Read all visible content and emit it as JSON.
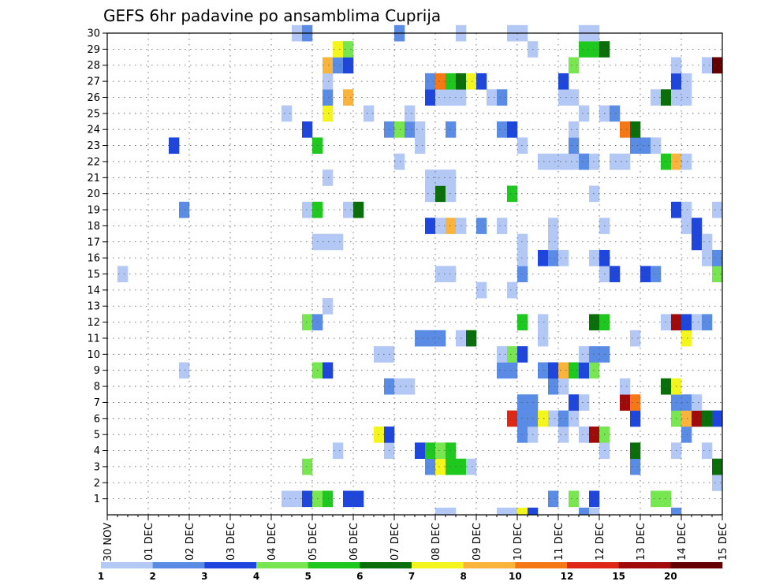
{
  "chart_data": {
    "type": "heatmap",
    "title": "GEFS 6hr padavine po ansamblima Cuprija",
    "xlabel": "",
    "ylabel": "",
    "x_tick_labels": [
      "30 NOV",
      "01 DEC",
      "02 DEC",
      "03 DEC",
      "04 DEC",
      "05 DEC",
      "06 DEC",
      "07 DEC",
      "08 DEC",
      "09 DEC",
      "10 DEC",
      "11 DEC",
      "12 DEC",
      "13 DEC",
      "14 DEC",
      "15 DEC"
    ],
    "y_tick_labels": [
      "1",
      "2",
      "3",
      "4",
      "5",
      "6",
      "7",
      "8",
      "9",
      "10",
      "11",
      "12",
      "13",
      "14",
      "15",
      "16",
      "17",
      "18",
      "19",
      "20",
      "21",
      "22",
      "23",
      "24",
      "25",
      "26",
      "27",
      "28",
      "29",
      "30"
    ],
    "ylim": [
      0,
      30
    ],
    "x_steps_per_day": 4,
    "n_steps": 60,
    "grid": true,
    "colorbar": {
      "levels": [
        "1",
        "2",
        "3",
        "4",
        "5",
        "6",
        "7",
        "8",
        "10",
        "12",
        "15",
        "20"
      ],
      "colors": [
        "#b4c8f5",
        "#5a8ce6",
        "#1e46dc",
        "#78e650",
        "#1ec81e",
        "#0a6e0a",
        "#f5f51e",
        "#fab43c",
        "#f57814",
        "#dc2814",
        "#a00a0a",
        "#640000"
      ]
    },
    "cells": [
      [
        1,
        17,
        0
      ],
      [
        1,
        18,
        0
      ],
      [
        1,
        19,
        2
      ],
      [
        1,
        20,
        3
      ],
      [
        1,
        21,
        4
      ],
      [
        1,
        23,
        2
      ],
      [
        1,
        24,
        2
      ],
      [
        1,
        43,
        1
      ],
      [
        1,
        45,
        3
      ],
      [
        1,
        47,
        2
      ],
      [
        1,
        53,
        3
      ],
      [
        1,
        54,
        3
      ],
      [
        2,
        59,
        0
      ],
      [
        3,
        19,
        3
      ],
      [
        3,
        31,
        1
      ],
      [
        3,
        32,
        6
      ],
      [
        3,
        33,
        4
      ],
      [
        3,
        34,
        4
      ],
      [
        3,
        35,
        0
      ],
      [
        3,
        51,
        1
      ],
      [
        3,
        59,
        5
      ],
      [
        4,
        22,
        0
      ],
      [
        4,
        27,
        0
      ],
      [
        4,
        30,
        2
      ],
      [
        4,
        31,
        4
      ],
      [
        4,
        32,
        3
      ],
      [
        4,
        33,
        4
      ],
      [
        4,
        48,
        0
      ],
      [
        4,
        51,
        5
      ],
      [
        4,
        55,
        0
      ],
      [
        4,
        58,
        0
      ],
      [
        5,
        26,
        6
      ],
      [
        5,
        27,
        2
      ],
      [
        5,
        40,
        1
      ],
      [
        5,
        41,
        0
      ],
      [
        5,
        44,
        0
      ],
      [
        5,
        46,
        0
      ],
      [
        5,
        47,
        10
      ],
      [
        5,
        48,
        3
      ],
      [
        5,
        56,
        1
      ],
      [
        6,
        39,
        9
      ],
      [
        6,
        40,
        1
      ],
      [
        6,
        41,
        1
      ],
      [
        6,
        42,
        6
      ],
      [
        6,
        43,
        0
      ],
      [
        6,
        44,
        1
      ],
      [
        6,
        45,
        0
      ],
      [
        6,
        51,
        2
      ],
      [
        6,
        55,
        3
      ],
      [
        6,
        56,
        7
      ],
      [
        6,
        57,
        10
      ],
      [
        6,
        58,
        5
      ],
      [
        6,
        59,
        2
      ],
      [
        7,
        40,
        1
      ],
      [
        7,
        41,
        1
      ],
      [
        7,
        45,
        2
      ],
      [
        7,
        46,
        0
      ],
      [
        7,
        50,
        10
      ],
      [
        7,
        51,
        8
      ],
      [
        7,
        55,
        1
      ],
      [
        7,
        56,
        1
      ],
      [
        7,
        57,
        0
      ],
      [
        8,
        27,
        1
      ],
      [
        8,
        28,
        0
      ],
      [
        8,
        29,
        0
      ],
      [
        8,
        43,
        1
      ],
      [
        8,
        44,
        0
      ],
      [
        8,
        50,
        0
      ],
      [
        8,
        54,
        5
      ],
      [
        8,
        55,
        6
      ],
      [
        9,
        7,
        0
      ],
      [
        9,
        20,
        3
      ],
      [
        9,
        21,
        2
      ],
      [
        9,
        38,
        1
      ],
      [
        9,
        39,
        1
      ],
      [
        9,
        42,
        1
      ],
      [
        9,
        43,
        2
      ],
      [
        9,
        44,
        7
      ],
      [
        9,
        45,
        4
      ],
      [
        9,
        46,
        2
      ],
      [
        9,
        47,
        3
      ],
      [
        10,
        26,
        0
      ],
      [
        10,
        27,
        0
      ],
      [
        10,
        38,
        0
      ],
      [
        10,
        39,
        3
      ],
      [
        10,
        40,
        2
      ],
      [
        10,
        46,
        0
      ],
      [
        10,
        47,
        1
      ],
      [
        10,
        48,
        1
      ],
      [
        11,
        30,
        1
      ],
      [
        11,
        31,
        1
      ],
      [
        11,
        32,
        1
      ],
      [
        11,
        34,
        0
      ],
      [
        11,
        35,
        5
      ],
      [
        11,
        42,
        0
      ],
      [
        11,
        51,
        0
      ],
      [
        11,
        56,
        6
      ],
      [
        12,
        19,
        3
      ],
      [
        12,
        20,
        1
      ],
      [
        12,
        40,
        4
      ],
      [
        12,
        42,
        0
      ],
      [
        12,
        47,
        5
      ],
      [
        12,
        48,
        4
      ],
      [
        12,
        54,
        0
      ],
      [
        12,
        55,
        10
      ],
      [
        12,
        56,
        2
      ],
      [
        12,
        57,
        0
      ],
      [
        12,
        58,
        1
      ],
      [
        13,
        21,
        0
      ],
      [
        14,
        36,
        0
      ],
      [
        14,
        39,
        0
      ],
      [
        15,
        1,
        0
      ],
      [
        15,
        32,
        0
      ],
      [
        15,
        33,
        0
      ],
      [
        15,
        40,
        1
      ],
      [
        15,
        48,
        0
      ],
      [
        15,
        49,
        2
      ],
      [
        15,
        52,
        2
      ],
      [
        15,
        53,
        1
      ],
      [
        15,
        59,
        3
      ],
      [
        16,
        40,
        0
      ],
      [
        16,
        42,
        2
      ],
      [
        16,
        43,
        1
      ],
      [
        16,
        44,
        0
      ],
      [
        16,
        47,
        0
      ],
      [
        16,
        48,
        2
      ],
      [
        16,
        58,
        0
      ],
      [
        16,
        59,
        1
      ],
      [
        17,
        20,
        0
      ],
      [
        17,
        21,
        0
      ],
      [
        17,
        22,
        0
      ],
      [
        17,
        40,
        0
      ],
      [
        17,
        43,
        0
      ],
      [
        17,
        57,
        2
      ],
      [
        17,
        58,
        0
      ],
      [
        18,
        31,
        2
      ],
      [
        18,
        32,
        0
      ],
      [
        18,
        33,
        7
      ],
      [
        18,
        34,
        0
      ],
      [
        18,
        36,
        1
      ],
      [
        18,
        38,
        0
      ],
      [
        18,
        43,
        0
      ],
      [
        18,
        48,
        0
      ],
      [
        18,
        56,
        0
      ],
      [
        18,
        57,
        2
      ],
      [
        19,
        7,
        1
      ],
      [
        19,
        19,
        0
      ],
      [
        19,
        20,
        4
      ],
      [
        19,
        23,
        0
      ],
      [
        19,
        24,
        5
      ],
      [
        19,
        55,
        2
      ],
      [
        19,
        56,
        0
      ],
      [
        19,
        59,
        0
      ],
      [
        20,
        31,
        0
      ],
      [
        20,
        32,
        5
      ],
      [
        20,
        33,
        0
      ],
      [
        20,
        39,
        4
      ],
      [
        20,
        47,
        0
      ],
      [
        21,
        21,
        0
      ],
      [
        21,
        31,
        0
      ],
      [
        21,
        32,
        0
      ],
      [
        21,
        33,
        0
      ],
      [
        22,
        28,
        0
      ],
      [
        22,
        42,
        0
      ],
      [
        22,
        43,
        0
      ],
      [
        22,
        44,
        0
      ],
      [
        22,
        45,
        0
      ],
      [
        22,
        46,
        1
      ],
      [
        22,
        47,
        0
      ],
      [
        22,
        49,
        0
      ],
      [
        22,
        50,
        0
      ],
      [
        22,
        54,
        4
      ],
      [
        22,
        55,
        7
      ],
      [
        22,
        56,
        0
      ],
      [
        23,
        6,
        2
      ],
      [
        23,
        20,
        4
      ],
      [
        23,
        30,
        0
      ],
      [
        23,
        40,
        0
      ],
      [
        23,
        45,
        1
      ],
      [
        23,
        51,
        1
      ],
      [
        23,
        52,
        1
      ],
      [
        23,
        53,
        0
      ],
      [
        24,
        19,
        2
      ],
      [
        24,
        27,
        1
      ],
      [
        24,
        28,
        3
      ],
      [
        24,
        29,
        1
      ],
      [
        24,
        30,
        0
      ],
      [
        24,
        33,
        1
      ],
      [
        24,
        38,
        1
      ],
      [
        24,
        39,
        2
      ],
      [
        24,
        45,
        0
      ],
      [
        24,
        50,
        8
      ],
      [
        24,
        51,
        5
      ],
      [
        25,
        17,
        0
      ],
      [
        25,
        21,
        6
      ],
      [
        25,
        25,
        0
      ],
      [
        25,
        29,
        0
      ],
      [
        25,
        46,
        0
      ],
      [
        25,
        48,
        0
      ],
      [
        25,
        49,
        1
      ],
      [
        26,
        21,
        1
      ],
      [
        26,
        23,
        7
      ],
      [
        26,
        31,
        2
      ],
      [
        26,
        32,
        0
      ],
      [
        26,
        33,
        0
      ],
      [
        26,
        34,
        0
      ],
      [
        26,
        37,
        0
      ],
      [
        26,
        38,
        1
      ],
      [
        26,
        44,
        0
      ],
      [
        26,
        45,
        0
      ],
      [
        26,
        53,
        0
      ],
      [
        26,
        54,
        5
      ],
      [
        26,
        55,
        0
      ],
      [
        26,
        56,
        0
      ],
      [
        27,
        21,
        0
      ],
      [
        27,
        31,
        1
      ],
      [
        27,
        32,
        8
      ],
      [
        27,
        33,
        4
      ],
      [
        27,
        34,
        5
      ],
      [
        27,
        35,
        6
      ],
      [
        27,
        36,
        2
      ],
      [
        27,
        44,
        2
      ],
      [
        27,
        55,
        2
      ],
      [
        27,
        56,
        0
      ],
      [
        28,
        21,
        7
      ],
      [
        28,
        22,
        1
      ],
      [
        28,
        23,
        2
      ],
      [
        28,
        45,
        3
      ],
      [
        28,
        55,
        0
      ],
      [
        28,
        58,
        0
      ],
      [
        28,
        59,
        11
      ],
      [
        29,
        22,
        6
      ],
      [
        29,
        23,
        3
      ],
      [
        29,
        41,
        0
      ],
      [
        29,
        46,
        4
      ],
      [
        29,
        47,
        4
      ],
      [
        29,
        48,
        5
      ],
      [
        30,
        18,
        0
      ],
      [
        30,
        19,
        1
      ],
      [
        30,
        28,
        1
      ],
      [
        30,
        34,
        0
      ],
      [
        30,
        39,
        0
      ],
      [
        30,
        40,
        0
      ],
      [
        30,
        46,
        0
      ],
      [
        30,
        47,
        0
      ],
      [
        0,
        32,
        0
      ],
      [
        0,
        33,
        0
      ],
      [
        0,
        38,
        0
      ],
      [
        0,
        39,
        0
      ],
      [
        0,
        40,
        6
      ],
      [
        0,
        41,
        2
      ],
      [
        0,
        46,
        1
      ],
      [
        0,
        47,
        0
      ],
      [
        0,
        55,
        1
      ]
    ]
  }
}
